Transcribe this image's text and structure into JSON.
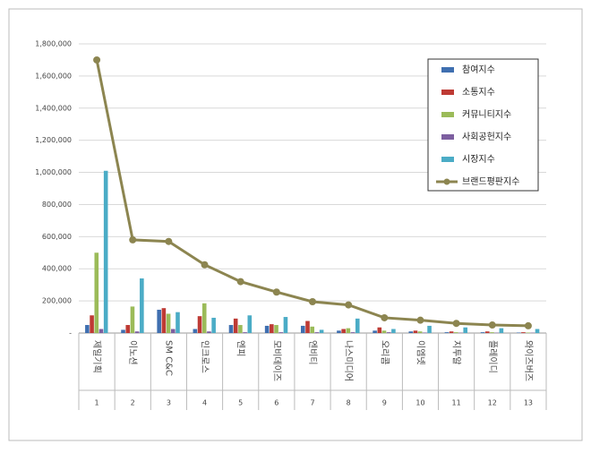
{
  "chart_data": {
    "type": "bar-line",
    "categories": [
      "제일기획",
      "이노션",
      "SM C&C",
      "인크로스",
      "엔피",
      "모비데이즈",
      "엔비티",
      "나스미디어",
      "오리콤",
      "이엠넷",
      "지투알",
      "플레이디",
      "와이즈버즈"
    ],
    "ranks": [
      1,
      2,
      3,
      4,
      5,
      6,
      7,
      8,
      9,
      10,
      11,
      12,
      13
    ],
    "series": [
      {
        "name": "참여지수",
        "color": "#3f6fb0",
        "values": [
          50000,
          20000,
          145000,
          25000,
          50000,
          45000,
          45000,
          15000,
          15000,
          10000,
          5000,
          5000,
          3000
        ]
      },
      {
        "name": "소통지수",
        "color": "#be3a34",
        "values": [
          110000,
          50000,
          155000,
          105000,
          90000,
          55000,
          75000,
          25000,
          35000,
          15000,
          10000,
          10000,
          5000
        ]
      },
      {
        "name": "커뮤니티지수",
        "color": "#9bbb59",
        "values": [
          500000,
          165000,
          120000,
          185000,
          50000,
          50000,
          40000,
          30000,
          15000,
          10000,
          5000,
          5000,
          3000
        ]
      },
      {
        "name": "사회공헌지수",
        "color": "#7d5fa0",
        "values": [
          25000,
          10000,
          25000,
          10000,
          5000,
          5000,
          5000,
          5000,
          5000,
          3000,
          2000,
          2000,
          2000
        ]
      },
      {
        "name": "시장지수",
        "color": "#4bacc6",
        "values": [
          1010000,
          340000,
          130000,
          95000,
          110000,
          100000,
          20000,
          90000,
          25000,
          45000,
          35000,
          30000,
          25000
        ]
      },
      {
        "name": "브랜드평판지수",
        "color": "#8c8550",
        "kind": "line",
        "values": [
          1700000,
          580000,
          570000,
          425000,
          320000,
          255000,
          195000,
          175000,
          95000,
          80000,
          60000,
          50000,
          45000
        ]
      }
    ],
    "ylim": [
      0,
      1800000
    ],
    "yticks": [
      {
        "value": 0,
        "label": "-"
      },
      {
        "value": 200000,
        "label": "200,000"
      },
      {
        "value": 400000,
        "label": "400,000"
      },
      {
        "value": 600000,
        "label": "600,000"
      },
      {
        "value": 800000,
        "label": "800,000"
      },
      {
        "value": 1000000,
        "label": "1,000,000"
      },
      {
        "value": 1200000,
        "label": "1,200,000"
      },
      {
        "value": 1400000,
        "label": "1,400,000"
      },
      {
        "value": 1600000,
        "label": "1,600,000"
      },
      {
        "value": 1800000,
        "label": "1,800,000"
      }
    ],
    "grid": true
  }
}
